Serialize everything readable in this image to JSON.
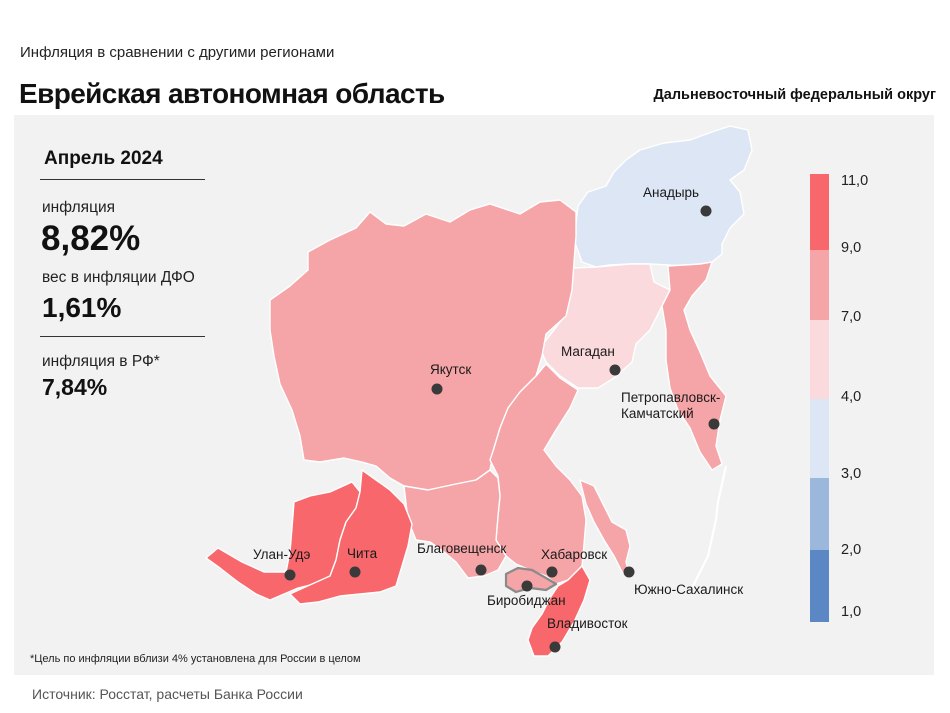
{
  "header": {
    "subtitle": "Инфляция  в сравнении  с другими  регионами",
    "title": "Еврейская автономная область",
    "district": "Дальневосточный федеральный округ"
  },
  "stats": {
    "month": "Апрель 2024",
    "inflation_label": "инфляция",
    "inflation_value": "8,82%",
    "weight_label": "вес в инфляции  ДФО",
    "weight_value": "1,61%",
    "rf_label": "инфляция  в РФ*",
    "rf_value": "7,84%"
  },
  "cities": [
    {
      "name": "Анадырь"
    },
    {
      "name": "Магадан"
    },
    {
      "name": "Якутск"
    },
    {
      "name": "Петропавловск-"
    },
    {
      "name": "Камчатский"
    },
    {
      "name": "Улан-Удэ"
    },
    {
      "name": "Чита"
    },
    {
      "name": "Благовещенск"
    },
    {
      "name": "Хабаровск"
    },
    {
      "name": "Биробиджан"
    },
    {
      "name": "Южно-Сахалинск"
    },
    {
      "name": "Владивосток"
    }
  ],
  "scale": {
    "labels": [
      "11,0",
      "9,0",
      "7,0",
      "4,0",
      "3,0",
      "2,0",
      "1,0"
    ],
    "colors": [
      "#f7676b",
      "#f5a4a7",
      "#fadadc",
      "#dde6f4",
      "#9cb7dc",
      "#5b88c4"
    ]
  },
  "colors": {
    "dark_red": "#f7676b",
    "medium_red": "#f5a4a7",
    "light_pink": "#fadadc",
    "light_blue": "#dde6f4",
    "panel_bg": "#f2f2f2",
    "border": "#ffffff"
  },
  "footnote": "*Цель  по  инфляции  вблизи  4%  установлена для  России  в  целом",
  "source": "Источник: Росстат,  расчеты Банка  России"
}
